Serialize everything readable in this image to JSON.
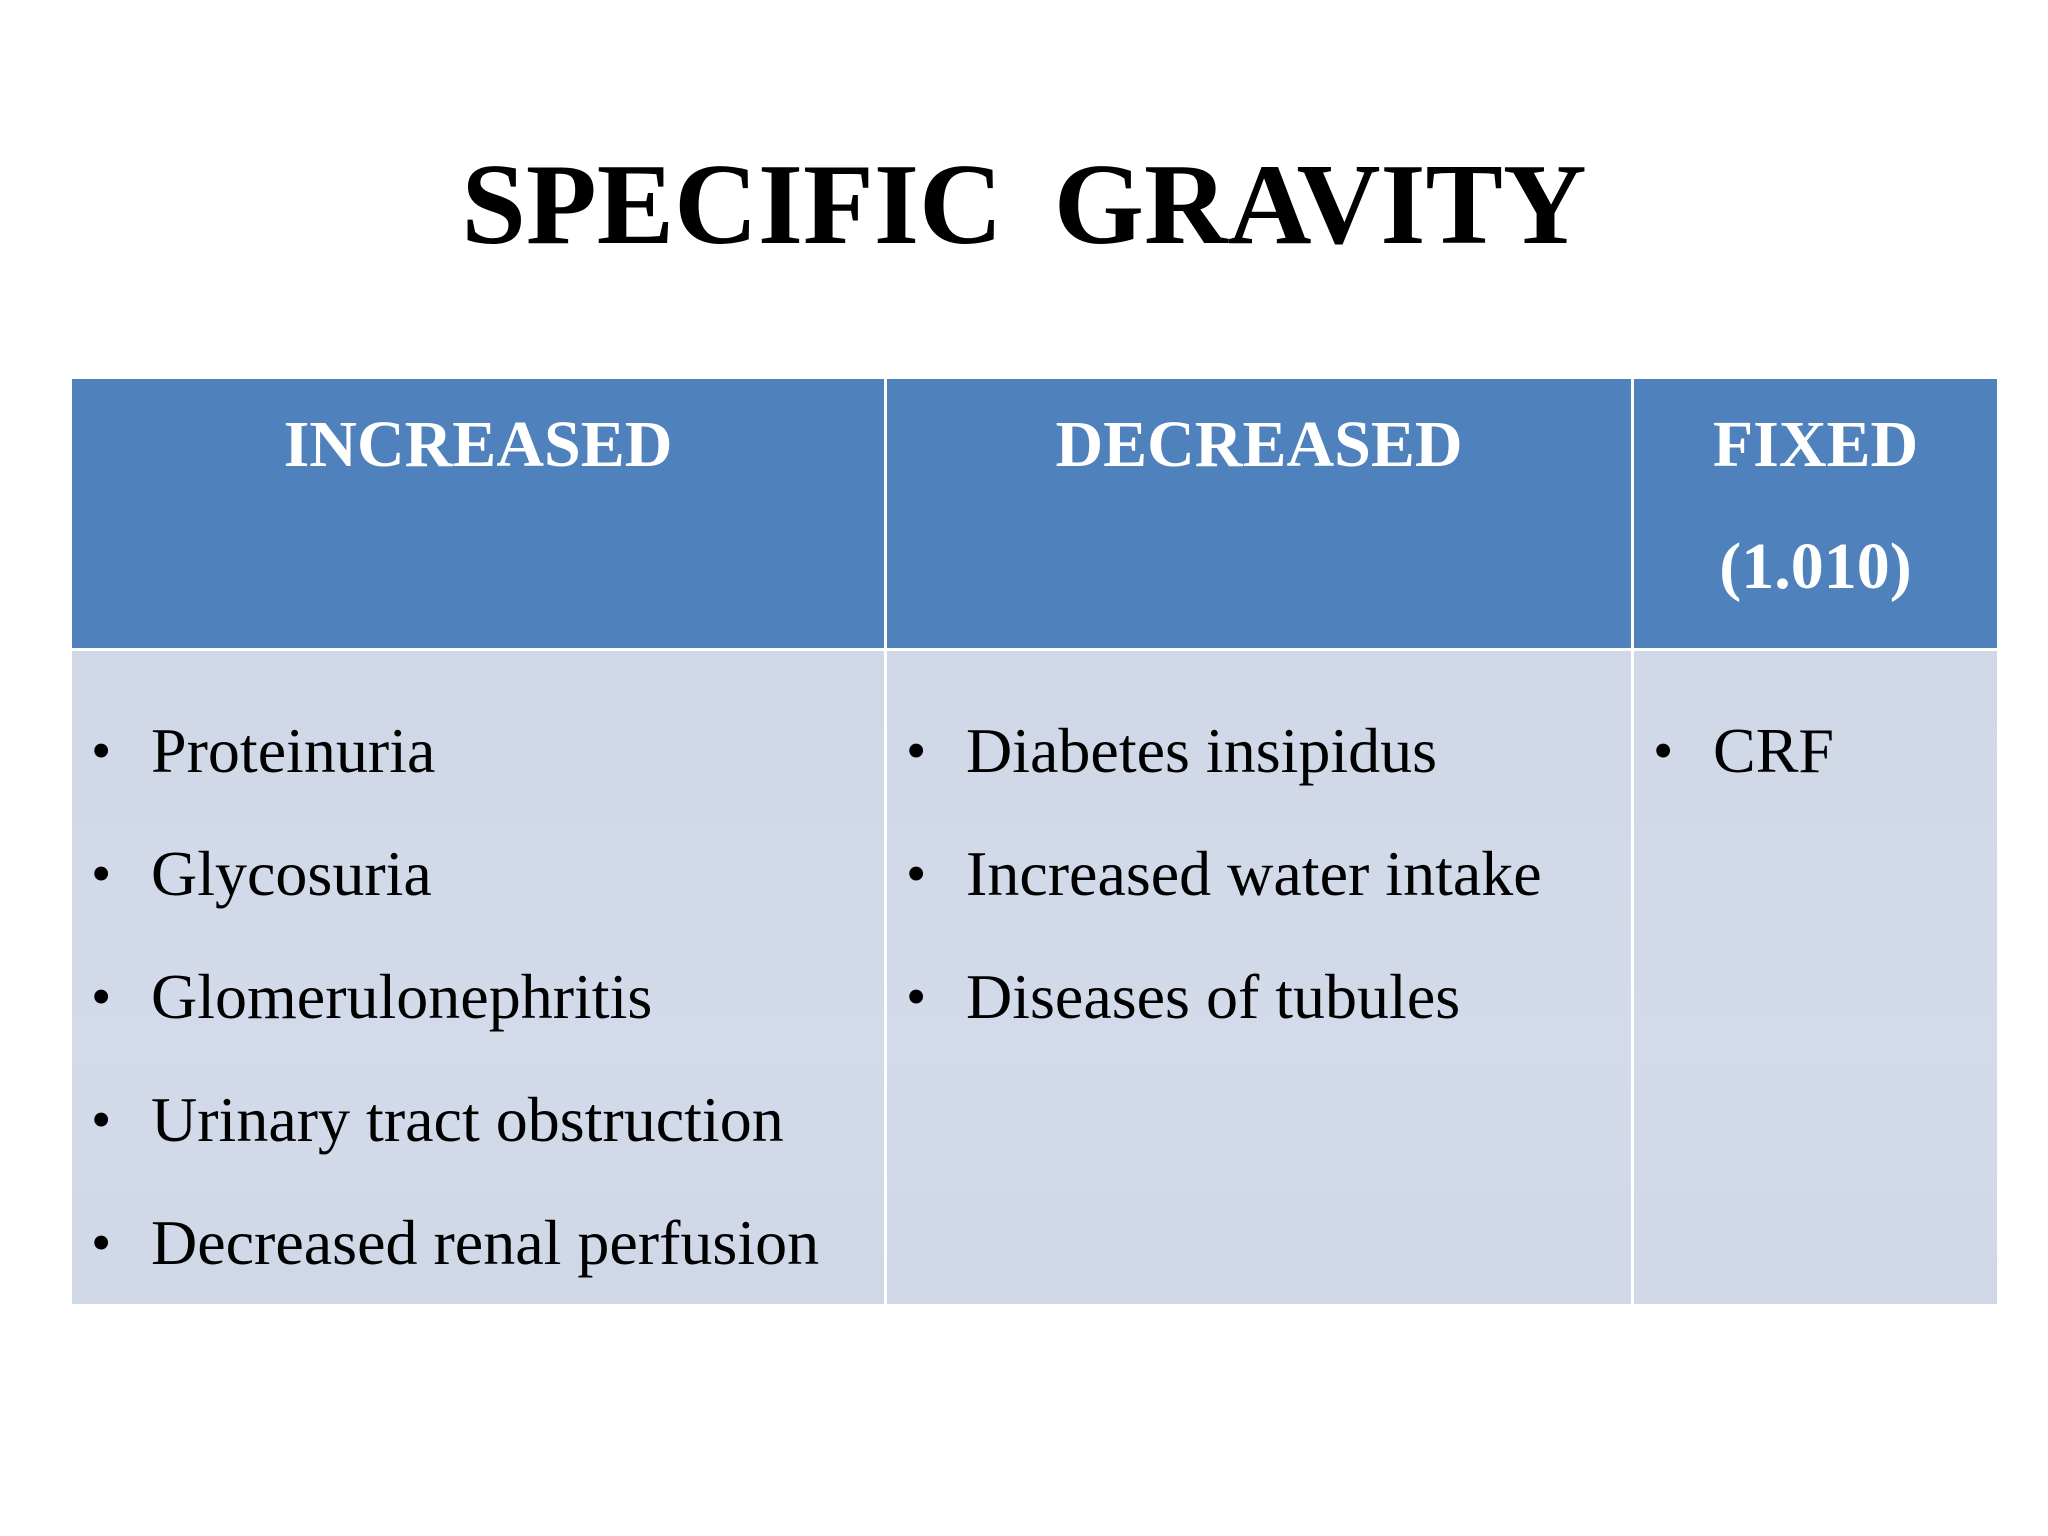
{
  "slide": {
    "title": "SPECIFIC  GRAVITY"
  },
  "table": {
    "columns": [
      {
        "header_lines": [
          "INCREASED"
        ],
        "items": [
          "Proteinuria",
          "Glycosuria",
          "Glomerulonephritis",
          "Urinary tract obstruction",
          "Decreased renal perfusion"
        ]
      },
      {
        "header_lines": [
          "DECREASED"
        ],
        "items": [
          "Diabetes insipidus",
          "Increased water intake",
          "Diseases of tubules"
        ]
      },
      {
        "header_lines": [
          "FIXED",
          "(1.010)"
        ],
        "items": [
          "CRF"
        ]
      }
    ],
    "bullet_glyph": "•"
  },
  "colors": {
    "header_fill": "#4f81bd",
    "body_fill": "#d0d8e8",
    "header_text": "#ffffff",
    "body_text": "#000000",
    "cell_border": "#ffffff"
  }
}
